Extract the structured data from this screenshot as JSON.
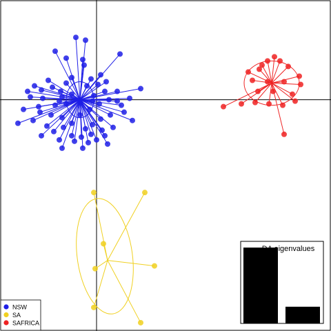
{
  "chart_data": {
    "type": "scatter",
    "title": "",
    "xlabel": "",
    "ylabel": "",
    "grid": false,
    "legend_position": "bottom-left",
    "axes_origin": [
      0,
      0
    ],
    "xlim": [
      -7.0,
      17.0
    ],
    "ylim": [
      -16.7,
      7.2
    ],
    "series": [
      {
        "name": "NSW",
        "color": "#1f1fe6",
        "centroid": [
          -1.2,
          0.0
        ],
        "ellipse": {
          "center": [
            -1.2,
            0.0
          ],
          "rx": 1.0,
          "ry": 1.3,
          "angle": 0
        },
        "points": [
          [
            -3.0,
            3.5
          ],
          [
            -1.5,
            4.5
          ],
          [
            -0.8,
            4.3
          ],
          [
            -2.2,
            3.0
          ],
          [
            1.7,
            3.3
          ],
          [
            -1.0,
            2.9
          ],
          [
            -0.9,
            2.5
          ],
          [
            0.3,
            1.8
          ],
          [
            -3.5,
            1.4
          ],
          [
            -4.5,
            1.0
          ],
          [
            -2.2,
            1.2
          ],
          [
            -1.8,
            1.6
          ],
          [
            -0.4,
            1.5
          ],
          [
            0.7,
            1.3
          ],
          [
            3.2,
            0.8
          ],
          [
            1.5,
            0.6
          ],
          [
            -5.0,
            0.6
          ],
          [
            -4.0,
            0.7
          ],
          [
            -3.2,
            0.9
          ],
          [
            -2.6,
            0.6
          ],
          [
            -4.8,
            0.2
          ],
          [
            -3.9,
            0.1
          ],
          [
            -2.7,
            -0.1
          ],
          [
            -4.2,
            -0.5
          ],
          [
            -3.0,
            -0.4
          ],
          [
            -2.2,
            -0.3
          ],
          [
            -5.3,
            -0.7
          ],
          [
            -4.1,
            -0.9
          ],
          [
            -3.3,
            -1.1
          ],
          [
            -2.5,
            -1.3
          ],
          [
            -5.7,
            -1.7
          ],
          [
            -4.6,
            -1.5
          ],
          [
            -3.6,
            -1.9
          ],
          [
            -2.4,
            -2.0
          ],
          [
            -3.1,
            -2.3
          ],
          [
            -4.0,
            -2.6
          ],
          [
            -1.8,
            -1.7
          ],
          [
            -1.2,
            -1.1
          ],
          [
            -0.5,
            -0.7
          ],
          [
            0.2,
            -0.3
          ],
          [
            0.9,
            0.0
          ],
          [
            1.8,
            -0.4
          ],
          [
            2.0,
            -0.9
          ],
          [
            1.0,
            -1.1
          ],
          [
            0.3,
            -1.4
          ],
          [
            -0.3,
            -1.8
          ],
          [
            -0.8,
            -2.1
          ],
          [
            0.4,
            -2.2
          ],
          [
            1.2,
            -2.0
          ],
          [
            2.6,
            -1.5
          ],
          [
            0.6,
            -2.6
          ],
          [
            -0.4,
            -2.5
          ],
          [
            -1.1,
            -2.7
          ],
          [
            -1.8,
            -2.6
          ],
          [
            -2.7,
            -2.9
          ],
          [
            -1.6,
            -3.0
          ],
          [
            -0.6,
            -3.1
          ],
          [
            0.8,
            -3.2
          ],
          [
            -2.5,
            -3.5
          ],
          [
            -1.0,
            -3.5
          ],
          [
            0.0,
            -2.9
          ],
          [
            1.5,
            -0.1
          ],
          [
            2.4,
            0.1
          ],
          [
            -0.2,
            0.3
          ],
          [
            -0.7,
            1.0
          ],
          [
            0.6,
            0.6
          ],
          [
            -1.8,
            0.4
          ],
          [
            -2.5,
            0.2
          ],
          [
            0.1,
            1.1
          ],
          [
            -0.3,
            -0.1
          ]
        ]
      },
      {
        "name": "SA",
        "color": "#f0d020",
        "centroid": [
          0.8,
          -11.6
        ],
        "ellipse": {
          "center": [
            0.6,
            -11.3
          ],
          "rx": 2.0,
          "ry": 4.2,
          "angle": -8
        },
        "points": [
          [
            -0.2,
            -6.7
          ],
          [
            3.5,
            -6.7
          ],
          [
            0.5,
            -10.4
          ],
          [
            -0.1,
            -12.2
          ],
          [
            4.2,
            -12.0
          ],
          [
            -0.2,
            -15.0
          ],
          [
            3.2,
            -16.1
          ]
        ]
      },
      {
        "name": "SAFRICA",
        "color": "#ee2222",
        "centroid": [
          12.7,
          1.2
        ],
        "ellipse": {
          "center": [
            12.7,
            1.2
          ],
          "rx": 2.0,
          "ry": 1.6,
          "angle": 0
        },
        "points": [
          [
            11.0,
            2.0
          ],
          [
            11.8,
            2.2
          ],
          [
            12.0,
            2.5
          ],
          [
            12.4,
            2.8
          ],
          [
            12.9,
            3.1
          ],
          [
            13.3,
            2.8
          ],
          [
            13.9,
            2.4
          ],
          [
            14.7,
            1.7
          ],
          [
            11.3,
            1.4
          ],
          [
            12.4,
            1.3
          ],
          [
            13.6,
            1.3
          ],
          [
            14.8,
            1.1
          ],
          [
            11.7,
            0.6
          ],
          [
            12.8,
            0.6
          ],
          [
            14.2,
            0.4
          ],
          [
            11.5,
            -0.2
          ],
          [
            12.5,
            -0.3
          ],
          [
            13.5,
            -0.4
          ],
          [
            14.4,
            -0.1
          ],
          [
            9.2,
            -0.5
          ],
          [
            10.5,
            -0.3
          ],
          [
            13.6,
            -2.5
          ]
        ]
      }
    ],
    "inset": {
      "type": "bar",
      "title": "DA eigenvalues",
      "values": [
        1.0,
        0.22
      ]
    }
  }
}
